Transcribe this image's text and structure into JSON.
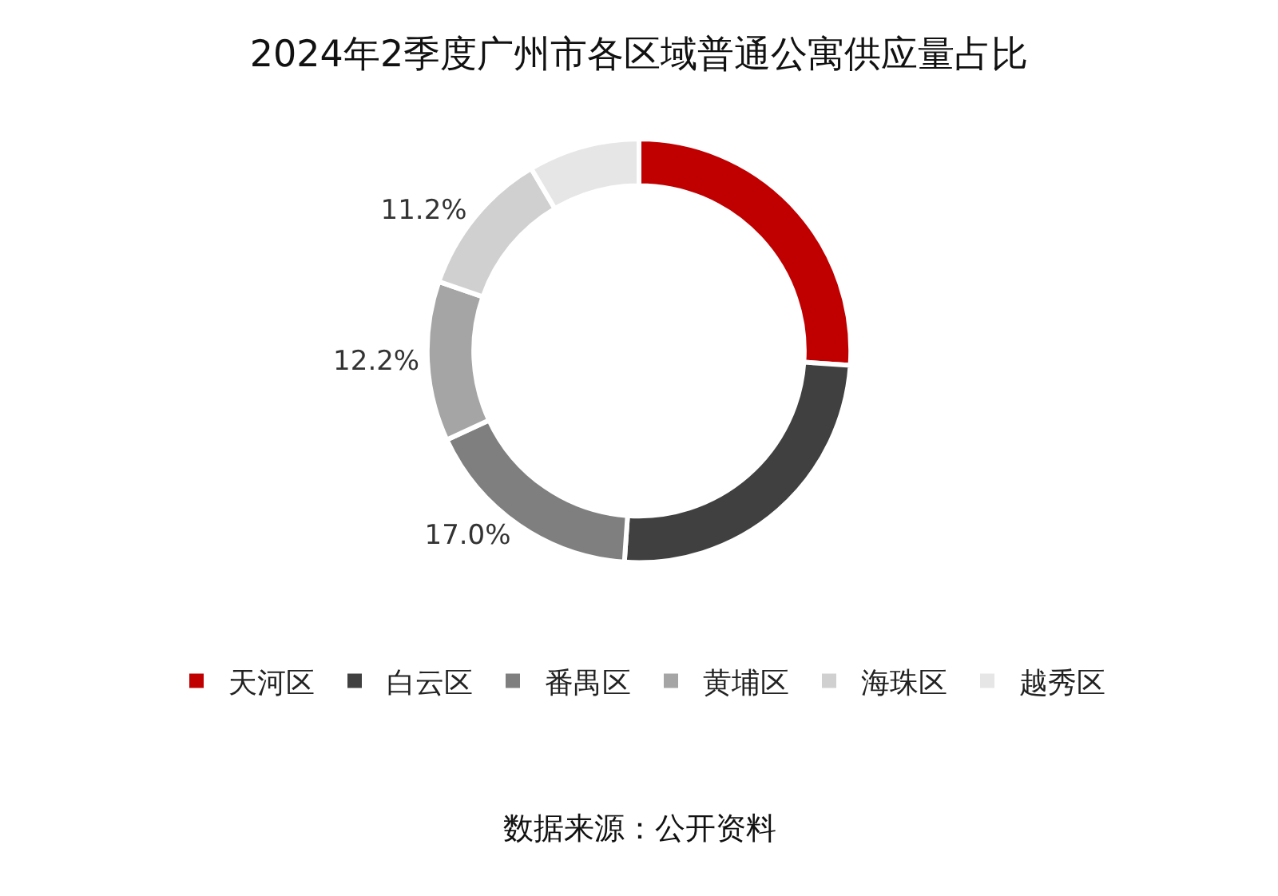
{
  "chart_data": {
    "type": "donut",
    "title": "2024年2季度广州市各区域普通公寓供应量占比",
    "categories": [
      "天河区",
      "白云区",
      "番禺区",
      "黄埔区",
      "海珠区",
      "越秀区"
    ],
    "values": [
      26.1,
      25,
      17.0,
      12.2,
      11.2,
      8.5
    ],
    "value_labels": [
      null,
      null,
      "17.0%",
      "12.2%",
      "11.2%",
      null
    ],
    "colors": [
      "#c00000",
      "#404040",
      "#7f7f7f",
      "#a5a5a5",
      "#d0d0d0",
      "#e6e6e6"
    ],
    "legend": "bottom",
    "annotations": [
      "数据来源：公开资料"
    ]
  }
}
